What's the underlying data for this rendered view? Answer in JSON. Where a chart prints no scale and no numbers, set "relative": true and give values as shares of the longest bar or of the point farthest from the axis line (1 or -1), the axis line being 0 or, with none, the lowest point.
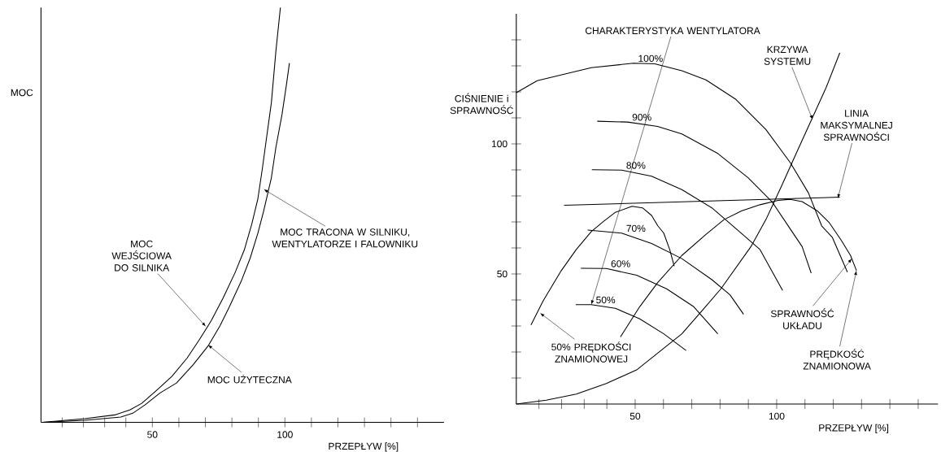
{
  "chart_data": [
    {
      "type": "line",
      "relative": true,
      "xlabel": "PRZEPŁYW [%]",
      "ylabel": "MOC",
      "xlim": [
        8,
        160
      ],
      "xticks": [
        {
          "value": 16,
          "label": null
        },
        {
          "value": 24,
          "label": null
        },
        {
          "value": 32,
          "label": null
        },
        {
          "value": 40,
          "label": null
        },
        50,
        {
          "value": 60,
          "label": null
        },
        {
          "value": 70,
          "label": null
        },
        {
          "value": 80,
          "label": null
        },
        {
          "value": 90,
          "label": null
        },
        100,
        {
          "value": 110,
          "label": null
        },
        {
          "value": 120,
          "label": null
        },
        {
          "value": 130,
          "label": null
        },
        {
          "value": 140,
          "label": null
        },
        {
          "value": 150,
          "label": null
        }
      ],
      "series": [
        {
          "color": "#000000",
          "x": [
            8.5,
            24.5,
            35.8,
            41.5,
            46.0,
            51.7,
            57.4,
            63.1,
            67.6,
            72.2,
            76.7,
            81.2,
            84.7,
            87.5,
            89.8,
            91.5,
            93.2,
            94.9,
            96.6,
            98.3
          ],
          "values": [
            0,
            0.009,
            0.018,
            0.03,
            0.046,
            0.078,
            0.111,
            0.155,
            0.198,
            0.245,
            0.3,
            0.361,
            0.416,
            0.478,
            0.539,
            0.612,
            0.692,
            0.771,
            0.895,
            1.0
          ]
        },
        {
          "color": "#000000",
          "x": [
            8.5,
            24.5,
            38.1,
            42.6,
            47.2,
            52.9,
            59.1,
            65.4,
            71.0,
            75.6,
            79.0,
            83.5,
            86.9,
            89.8,
            92.0,
            94.9,
            96.6,
            98.9,
            100.6,
            101.7
          ],
          "values": [
            0,
            0.005,
            0.013,
            0.022,
            0.042,
            0.071,
            0.095,
            0.139,
            0.184,
            0.234,
            0.278,
            0.34,
            0.396,
            0.456,
            0.51,
            0.59,
            0.663,
            0.742,
            0.815,
            0.866
          ]
        }
      ],
      "annotations": [
        {
          "text": "MOC WEJŚCIOWA DO SILNIKA",
          "x": 70.2,
          "y": 0.231
        },
        {
          "text": "MOC TRACONA W SILNIKU, WENTYLATORZE I FALOWNIKU",
          "x": 92.0,
          "y": 0.562
        },
        {
          "text": "MOC UŻYTECZNA",
          "x": 71.0,
          "y": 0.187
        }
      ]
    },
    {
      "type": "line",
      "xlabel": "PRZEPŁYW [%]",
      "ylabel": "CIŚNIENIE i SPRAWNOŚĆ",
      "xlim": [
        8,
        157
      ],
      "ylim": [
        0,
        150
      ],
      "xticks": [
        {
          "value": 16,
          "label": null
        },
        {
          "value": 24,
          "label": null
        },
        {
          "value": 32,
          "label": null
        },
        {
          "value": 40,
          "label": null
        },
        50,
        {
          "value": 60,
          "label": null
        },
        {
          "value": 70,
          "label": null
        },
        {
          "value": 80,
          "label": null
        },
        {
          "value": 90,
          "label": null
        },
        100,
        {
          "value": 110,
          "label": null
        },
        {
          "value": 120,
          "label": null
        },
        {
          "value": 130,
          "label": null
        },
        {
          "value": 140,
          "label": null
        },
        {
          "value": 150,
          "label": null
        }
      ],
      "yticks": [
        {
          "value": 10,
          "label": null
        },
        {
          "value": 20,
          "label": null
        },
        {
          "value": 30,
          "label": null
        },
        {
          "value": 40,
          "label": null
        },
        50,
        {
          "value": 60,
          "label": null
        },
        {
          "value": 70,
          "label": null
        },
        {
          "value": 80,
          "label": null
        },
        {
          "value": 90,
          "label": null
        },
        100,
        {
          "value": 110,
          "label": null
        },
        {
          "value": 120,
          "label": null
        },
        {
          "value": 130,
          "label": null
        },
        {
          "value": 140,
          "label": null
        }
      ],
      "series": [
        {
          "name": "100%",
          "color": "#000000",
          "x": [
            8,
            15.4,
            34.5,
            49.4,
            56.9,
            66.5,
            75.0,
            85.6,
            96.2,
            104.8,
            111.2,
            115.9,
            119.7,
            125.0
          ],
          "values": [
            119.7,
            124.3,
            129.3,
            131.0,
            130.8,
            128.1,
            124.6,
            117.1,
            105.5,
            92.8,
            81.2,
            68.5,
            64.0,
            50.7
          ]
        },
        {
          "name": "90%",
          "color": "#000000",
          "x": [
            36.6,
            47.3,
            57.9,
            66.5,
            79.2,
            89.9,
            98.4,
            104.8,
            109.0,
            112.2
          ],
          "values": [
            108.7,
            108.4,
            106.7,
            103.8,
            96.3,
            87.0,
            77.7,
            67.3,
            60.5,
            50.3
          ]
        },
        {
          "name": "80%",
          "color": "#000000",
          "x": [
            34.7,
            45.2,
            55.8,
            66.5,
            77.1,
            84.5,
            94.1,
            102.1
          ],
          "values": [
            90.1,
            89.9,
            87.6,
            82.4,
            75.4,
            68.5,
            59.4,
            43.7
          ]
        },
        {
          "name": "70%",
          "color": "#000000",
          "x": [
            33.2,
            45.2,
            55.8,
            66.5,
            77.1,
            83.5,
            88.3
          ],
          "values": [
            66.9,
            65.7,
            61.7,
            55.9,
            47.8,
            42.0,
            34.5
          ]
        },
        {
          "name": "60%",
          "color": "#000000",
          "x": [
            30.8,
            39.8,
            50.5,
            61.1,
            70.7,
            79.2
          ],
          "values": [
            52.2,
            52.1,
            49.5,
            44.3,
            37.4,
            27.0
          ]
        },
        {
          "name": "50%",
          "color": "#000000",
          "x": [
            29.0,
            34.5,
            43.0,
            51.5,
            60.1,
            68.0
          ],
          "values": [
            38.2,
            38.2,
            36.8,
            32.8,
            27.0,
            20.6
          ]
        },
        {
          "color": "#000000",
          "x": [
            13.2,
            17.5,
            23.9,
            29.2,
            34.5,
            38.8,
            43.0,
            48.9,
            52.6,
            55.8,
            58.0,
            60.1,
            62.2,
            63.8
          ],
          "values": [
            30.4,
            39.7,
            51.3,
            59.4,
            66.3,
            70.2,
            73.7,
            76.0,
            75.4,
            72.5,
            68.5,
            65.7,
            59.4,
            53.0
          ]
        },
        {
          "color": "#000000",
          "x": [
            44.8,
            51.6,
            57.9,
            66.5,
            75.0,
            81.4,
            87.7,
            94.1,
            100.5,
            104.8,
            109.0,
            114.3,
            118.6,
            122.9,
            126.1,
            128.2
          ],
          "values": [
            25.8,
            37.4,
            46.6,
            57.1,
            65.2,
            70.9,
            74.3,
            76.6,
            78.3,
            78.7,
            77.8,
            74.3,
            69.7,
            62.8,
            57.1,
            51.3
          ]
        },
        {
          "color": "#000000",
          "x": [
            8,
            18.6,
            29.2,
            39.8,
            50.5,
            61.1,
            66.5,
            73.9,
            80.3,
            85.6,
            90.9,
            96.2,
            101.6,
            106.9,
            112.2,
            117.5,
            122.3
          ],
          "values": [
            0,
            1.5,
            3.8,
            7.9,
            13.1,
            22.3,
            27.0,
            36.2,
            44.3,
            52.4,
            60.5,
            70.9,
            83.5,
            96.3,
            109.0,
            121.7,
            135.0
          ]
        },
        {
          "color": "#000000",
          "x": [
            24.9,
            122.3
          ],
          "values": [
            76.4,
            79.5
          ]
        }
      ],
      "annotations": [
        {
          "text": "CHARAKTERYSTYKA WENTYLATORA",
          "x": 34.5,
          "y": 38.2
        },
        {
          "text": "KRZYWA SYSTEMU",
          "x": 112.7,
          "y": 109.3
        },
        {
          "text": "LINIA MAKSYMALNEJ SPRAWNOŚCI",
          "x": 121.6,
          "y": 79.0
        },
        {
          "text": "SPRAWNOŚĆ UKŁADU",
          "x": 126.6,
          "y": 55.9
        },
        {
          "text": "PRĘDKOŚĆ ZNAMIONOWA",
          "x": 128.2,
          "y": 51.3
        },
        {
          "text": "50% PRĘDKOŚCI ZNAMIONOWEJ",
          "x": 16.4,
          "y": 35.0
        }
      ]
    }
  ]
}
